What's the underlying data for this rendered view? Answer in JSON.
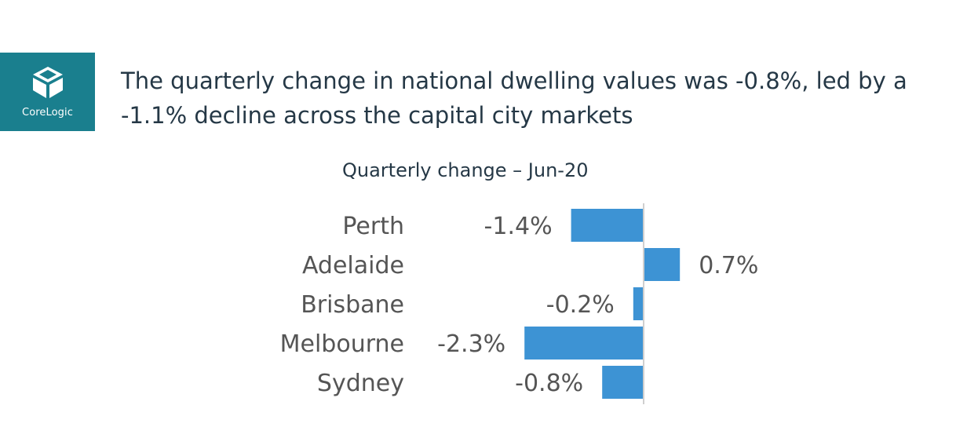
{
  "logo": {
    "brand_name": "CoreLogic",
    "brand_color": "#1a7f8e"
  },
  "headline": {
    "text": "The quarterly change in national dwelling values was -0.8%, led by a -1.1% decline across the capital city markets"
  },
  "chart_data": {
    "type": "bar",
    "orientation": "horizontal",
    "title": "Quarterly change – Jun-20",
    "categories": [
      "Perth",
      "Adelaide",
      "Brisbane",
      "Melbourne",
      "Sydney"
    ],
    "values": [
      -1.4,
      0.7,
      -0.2,
      -2.3,
      -0.8
    ],
    "value_labels": [
      "-1.4%",
      "0.7%",
      "-0.2%",
      "-2.3%",
      "-0.8%"
    ],
    "unit": "%",
    "xlabel": "",
    "ylabel": "",
    "grid": false,
    "legend": "none",
    "bar_color": "#3d93d4",
    "axis_color": "#cfcfcf"
  }
}
